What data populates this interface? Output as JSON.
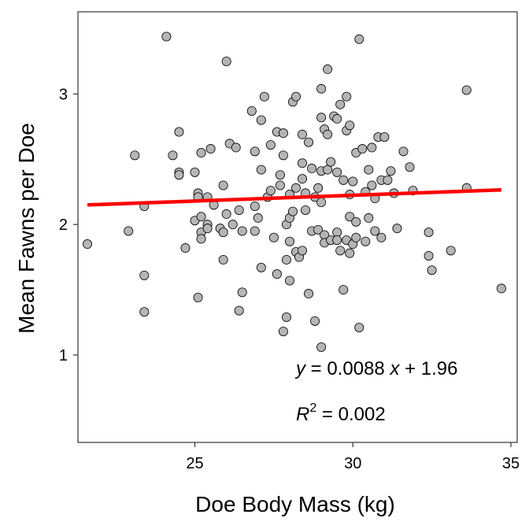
{
  "chart_data": {
    "type": "scatter",
    "xlabel": "Doe Body Mass (kg)",
    "ylabel": "Mean Fawns per Doe",
    "xlim": [
      21.3,
      35.2
    ],
    "ylim": [
      0.33,
      3.63
    ],
    "xticks": [
      25,
      30,
      35
    ],
    "yticks": [
      1,
      2,
      3
    ],
    "grid": false,
    "annotation": {
      "equation": {
        "y_var": "y",
        "eq": " = 0.0088 ",
        "x_var": "x",
        "plus": " + 1.96"
      },
      "r2": {
        "r": "R",
        "sup": "2",
        "val": " = 0.002"
      }
    },
    "fit_line": {
      "slope": 0.0088,
      "intercept": 1.96,
      "x": [
        21.6,
        34.7
      ],
      "color": "#ff0000"
    },
    "point_color": "#b5b5b5",
    "points": [
      [
        21.6,
        1.85
      ],
      [
        22.9,
        1.95
      ],
      [
        23.1,
        2.53
      ],
      [
        23.4,
        2.14
      ],
      [
        23.4,
        1.61
      ],
      [
        23.4,
        1.33
      ],
      [
        24.1,
        3.44
      ],
      [
        24.3,
        2.53
      ],
      [
        24.5,
        2.71
      ],
      [
        24.5,
        2.4
      ],
      [
        24.5,
        2.38
      ],
      [
        24.7,
        1.82
      ],
      [
        25.0,
        2.03
      ],
      [
        25.0,
        2.4
      ],
      [
        25.1,
        2.24
      ],
      [
        25.1,
        2.21
      ],
      [
        25.1,
        1.44
      ],
      [
        25.2,
        2.55
      ],
      [
        25.2,
        2.06
      ],
      [
        25.2,
        1.94
      ],
      [
        25.2,
        1.89
      ],
      [
        25.4,
        2.21
      ],
      [
        25.4,
        2.0
      ],
      [
        25.4,
        1.97
      ],
      [
        25.5,
        2.58
      ],
      [
        25.6,
        2.15
      ],
      [
        25.8,
        1.97
      ],
      [
        25.9,
        2.3
      ],
      [
        25.9,
        1.94
      ],
      [
        25.9,
        1.73
      ],
      [
        26.0,
        3.25
      ],
      [
        26.0,
        2.08
      ],
      [
        26.1,
        2.62
      ],
      [
        26.2,
        2.0
      ],
      [
        26.3,
        2.59
      ],
      [
        26.4,
        2.11
      ],
      [
        26.4,
        1.34
      ],
      [
        26.5,
        1.95
      ],
      [
        26.5,
        1.48
      ],
      [
        26.8,
        2.87
      ],
      [
        26.9,
        2.56
      ],
      [
        26.9,
        2.14
      ],
      [
        26.9,
        1.95
      ],
      [
        27.0,
        2.05
      ],
      [
        27.1,
        2.8
      ],
      [
        27.1,
        2.42
      ],
      [
        27.1,
        1.67
      ],
      [
        27.2,
        2.98
      ],
      [
        27.3,
        2.21
      ],
      [
        27.4,
        2.61
      ],
      [
        27.4,
        2.26
      ],
      [
        27.5,
        1.9
      ],
      [
        27.6,
        2.71
      ],
      [
        27.6,
        1.62
      ],
      [
        27.7,
        2.38
      ],
      [
        27.7,
        2.3
      ],
      [
        27.8,
        2.53
      ],
      [
        27.8,
        1.18
      ],
      [
        27.8,
        2.7
      ],
      [
        27.9,
        2.0
      ],
      [
        27.9,
        1.73
      ],
      [
        27.9,
        1.29
      ],
      [
        28.0,
        2.23
      ],
      [
        28.0,
        2.05
      ],
      [
        28.0,
        1.87
      ],
      [
        28.0,
        1.57
      ],
      [
        28.1,
        2.94
      ],
      [
        28.1,
        2.1
      ],
      [
        28.2,
        2.98
      ],
      [
        28.2,
        2.28
      ],
      [
        28.2,
        1.79
      ],
      [
        28.3,
        1.75
      ],
      [
        28.4,
        2.47
      ],
      [
        28.4,
        2.35
      ],
      [
        28.4,
        2.69
      ],
      [
        28.4,
        1.8
      ],
      [
        28.5,
        2.24
      ],
      [
        28.5,
        2.11
      ],
      [
        28.6,
        2.63
      ],
      [
        28.6,
        1.47
      ],
      [
        28.7,
        2.43
      ],
      [
        28.7,
        1.95
      ],
      [
        28.8,
        1.26
      ],
      [
        28.8,
        2.21
      ],
      [
        28.9,
        1.96
      ],
      [
        28.9,
        2.28
      ],
      [
        29.0,
        3.04
      ],
      [
        29.0,
        2.82
      ],
      [
        29.0,
        2.41
      ],
      [
        29.0,
        2.17
      ],
      [
        29.0,
        1.06
      ],
      [
        29.1,
        2.73
      ],
      [
        29.1,
        1.92
      ],
      [
        29.1,
        1.86
      ],
      [
        29.2,
        3.19
      ],
      [
        29.2,
        2.69
      ],
      [
        29.2,
        2.42
      ],
      [
        29.3,
        2.48
      ],
      [
        29.3,
        1.88
      ],
      [
        29.4,
        2.83
      ],
      [
        29.5,
        2.81
      ],
      [
        29.5,
        1.94
      ],
      [
        29.5,
        2.4
      ],
      [
        29.5,
        1.88
      ],
      [
        29.6,
        2.92
      ],
      [
        29.6,
        1.8
      ],
      [
        29.7,
        2.34
      ],
      [
        29.7,
        1.5
      ],
      [
        29.8,
        2.98
      ],
      [
        29.8,
        2.72
      ],
      [
        29.8,
        1.88
      ],
      [
        29.9,
        2.76
      ],
      [
        29.9,
        2.23
      ],
      [
        29.9,
        2.06
      ],
      [
        29.9,
        1.78
      ],
      [
        30.0,
        2.33
      ],
      [
        30.0,
        1.85
      ],
      [
        30.1,
        2.55
      ],
      [
        30.1,
        2.02
      ],
      [
        30.1,
        1.9
      ],
      [
        30.2,
        3.42
      ],
      [
        30.2,
        1.21
      ],
      [
        30.3,
        2.58
      ],
      [
        30.4,
        2.25
      ],
      [
        30.4,
        1.87
      ],
      [
        30.5,
        2.42
      ],
      [
        30.5,
        2.05
      ],
      [
        30.6,
        2.59
      ],
      [
        30.6,
        2.3
      ],
      [
        30.7,
        2.2
      ],
      [
        30.7,
        1.95
      ],
      [
        30.8,
        2.67
      ],
      [
        30.9,
        2.34
      ],
      [
        30.9,
        1.9
      ],
      [
        31.0,
        2.67
      ],
      [
        31.1,
        2.34
      ],
      [
        31.2,
        2.41
      ],
      [
        31.3,
        2.24
      ],
      [
        31.4,
        1.97
      ],
      [
        31.6,
        2.56
      ],
      [
        31.8,
        2.44
      ],
      [
        31.9,
        2.26
      ],
      [
        32.4,
        1.94
      ],
      [
        32.4,
        1.76
      ],
      [
        32.5,
        1.65
      ],
      [
        33.1,
        1.8
      ],
      [
        33.6,
        3.03
      ],
      [
        33.6,
        2.28
      ],
      [
        34.7,
        1.51
      ]
    ]
  }
}
